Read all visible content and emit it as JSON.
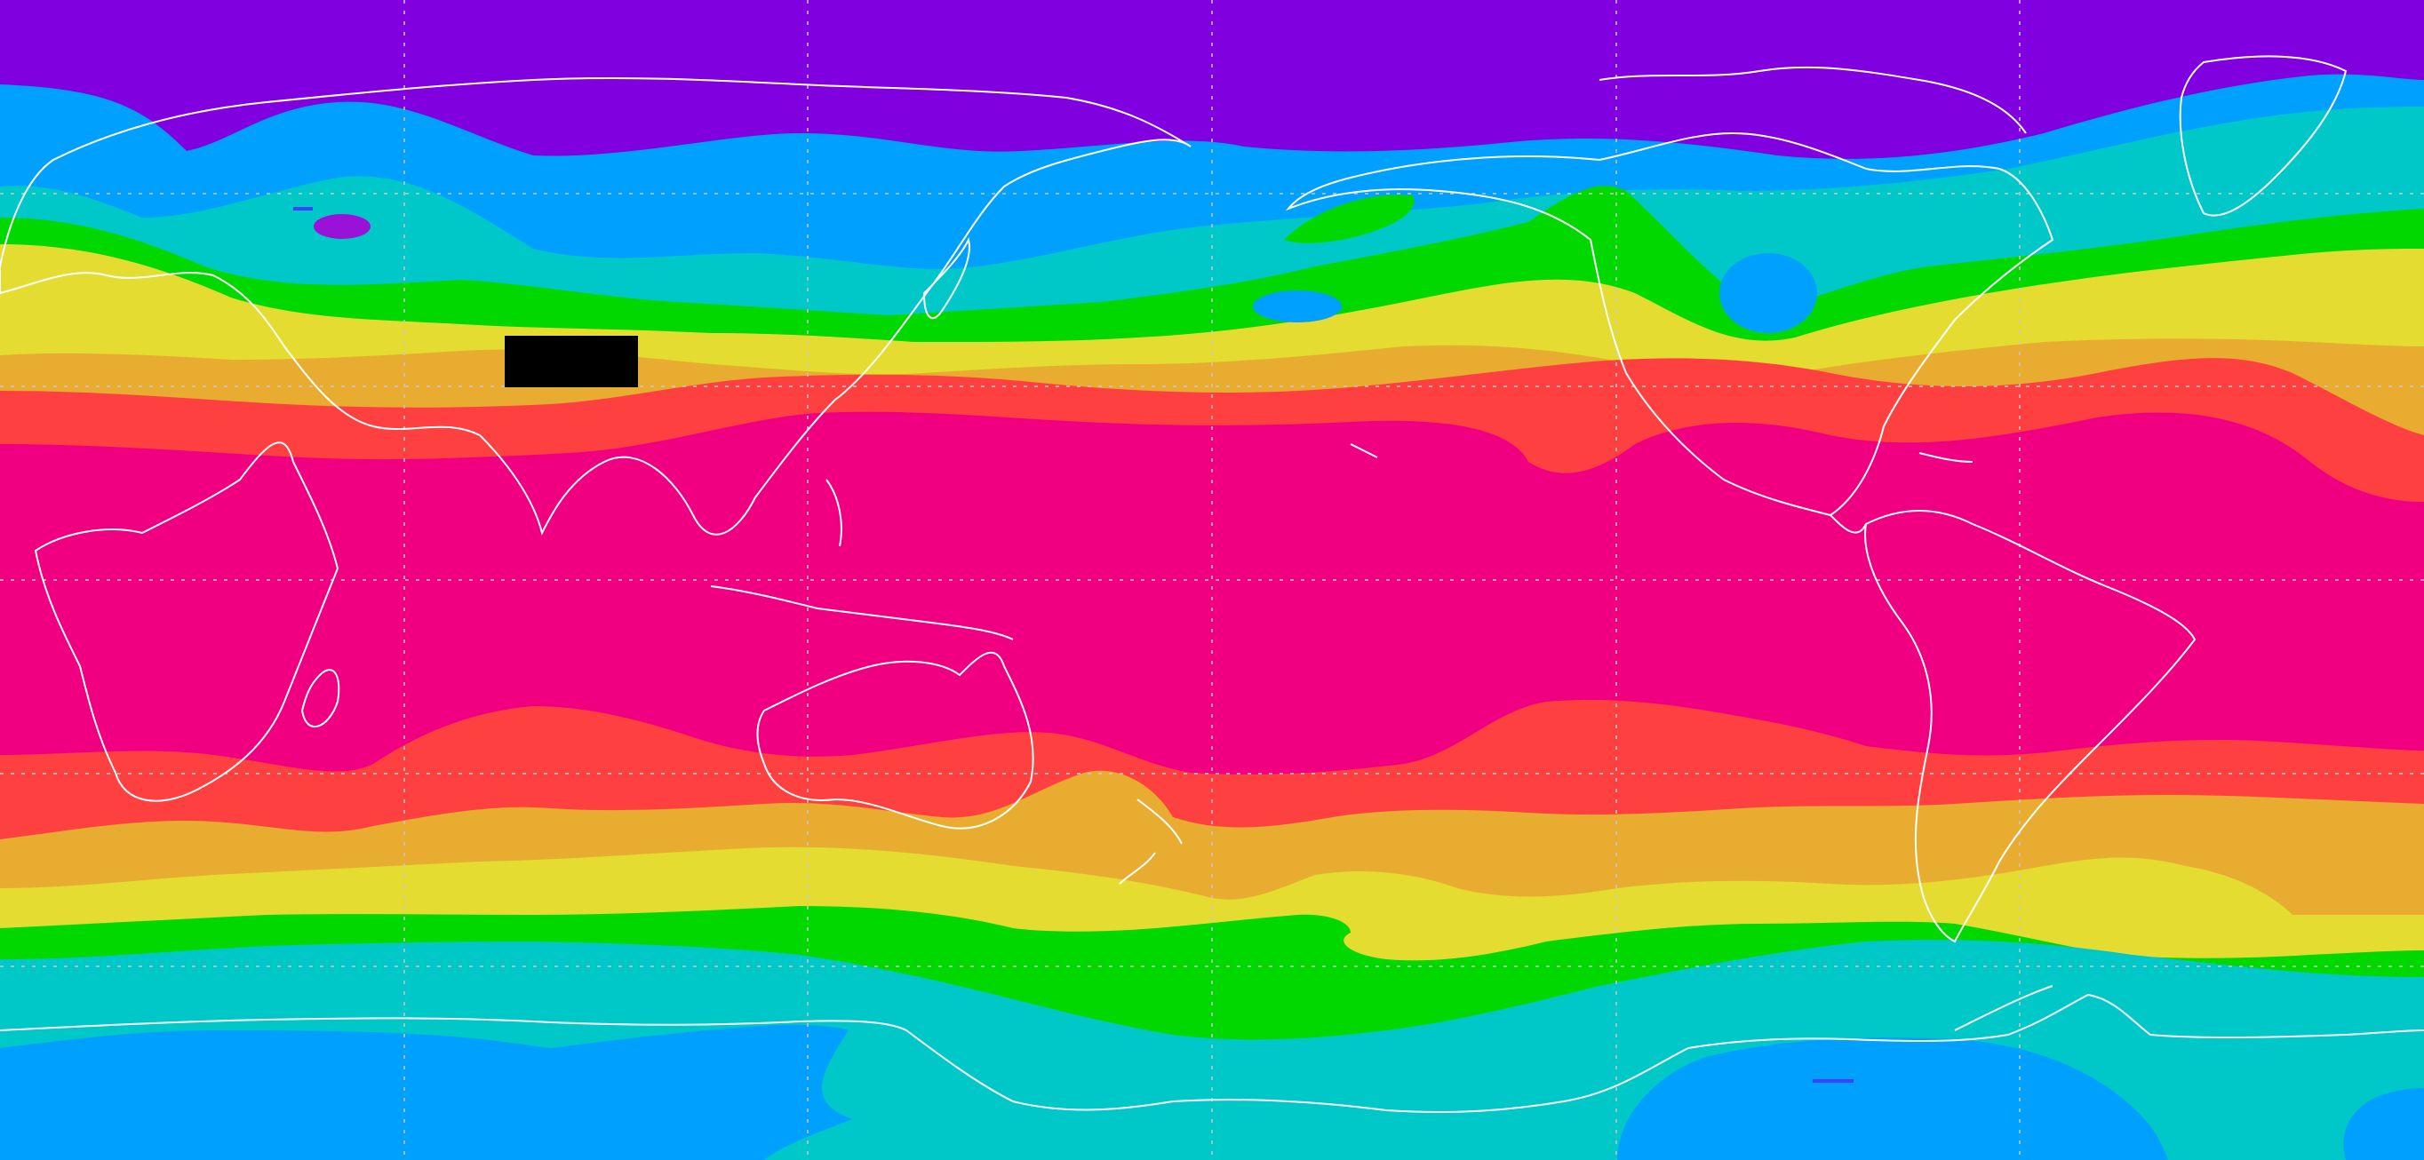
{
  "map": {
    "projection": "equirectangular",
    "graticule": "dashed",
    "coastline_color": "#ffffff",
    "legend": "none",
    "band_colors": {
      "violet": "#8000e0",
      "violet_light": "#9a12d8",
      "blue": "#00a0ff",
      "cyan": "#00c8c8",
      "green": "#00d800",
      "yellow": "#e4dc30",
      "orange": "#e8ac30",
      "red": "#ff4040",
      "magenta": "#f00080"
    },
    "redacted_box_color": "#000000"
  }
}
